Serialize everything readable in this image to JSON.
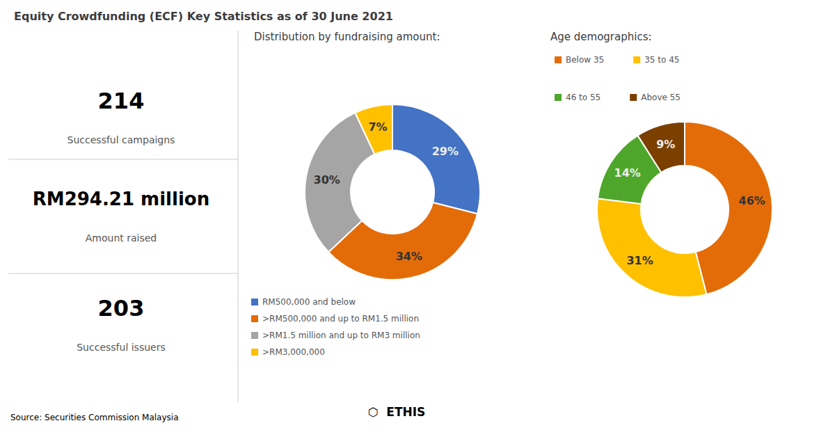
{
  "title": "Equity Crowdfunding (ECF) Key Statistics as of 30 June 2021",
  "chart_data": [
    {
      "type": "pie",
      "title": "Distribution by fundraising amount:",
      "categories": [
        "RM500,000 and below",
        ">RM500,000 and up to RM1.5 million",
        ">RM1.5 million and up to RM3 million",
        ">RM3,000,000"
      ],
      "values": [
        29,
        34,
        30,
        7
      ],
      "value_labels": [
        "29%",
        "34%",
        "30%",
        "7%"
      ],
      "colors": [
        "#4472C4",
        "#E36C09",
        "#A5A5A5",
        "#FFC000"
      ],
      "data_labels": true,
      "legend": "bottom"
    },
    {
      "type": "pie",
      "title": "Age demographics:",
      "categories": [
        "Below 35",
        "35 to 45",
        "46 to 55",
        "Above 55"
      ],
      "values": [
        46,
        31,
        14,
        9
      ],
      "value_labels": [
        "46%",
        "31%",
        "14%",
        "9%"
      ],
      "colors": [
        "#E36C09",
        "#FFC000",
        "#4EA72A",
        "#7B3F00"
      ],
      "data_labels": true,
      "legend": "top"
    }
  ],
  "stats": [
    {
      "value": "214",
      "label": "Successful campaigns"
    },
    {
      "value": "RM294.21 million",
      "label": "Amount raised"
    },
    {
      "value": "203",
      "label": "Successful issuers"
    }
  ],
  "annotations": [
    "⬡  ETHIS",
    "Source: Securities Commission Malaysia"
  ]
}
